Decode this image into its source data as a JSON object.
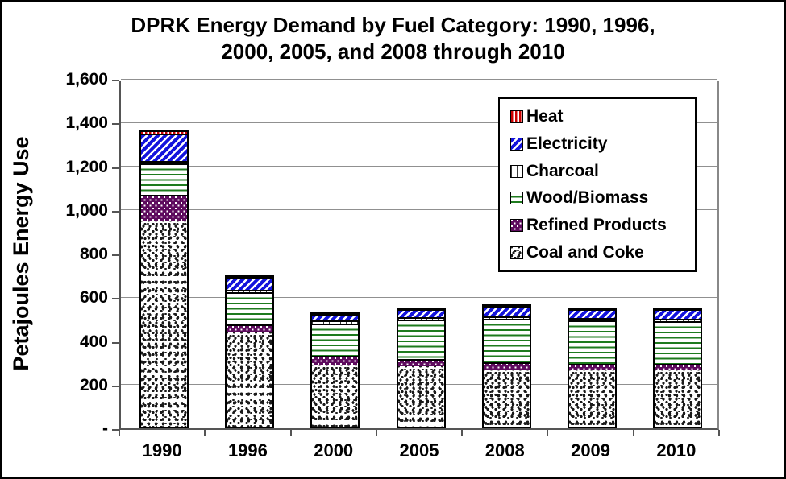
{
  "title": {
    "line1": "DPRK Energy Demand by Fuel Category: 1990, 1996,",
    "line2": "2000, 2005, and 2008 through 2010"
  },
  "axes": {
    "y_title": "Petajoules Energy Use",
    "y_ticks": [
      {
        "value": 0,
        "label": "-"
      },
      {
        "value": 200,
        "label": "200"
      },
      {
        "value": 400,
        "label": "400"
      },
      {
        "value": 600,
        "label": "600"
      },
      {
        "value": 800,
        "label": "800"
      },
      {
        "value": 1000,
        "label": "1,000"
      },
      {
        "value": 1200,
        "label": "1,200"
      },
      {
        "value": 1400,
        "label": "1,400"
      },
      {
        "value": 1600,
        "label": "1,600"
      }
    ]
  },
  "chart_data": {
    "type": "bar",
    "stacked": true,
    "title": "DPRK Energy Demand by Fuel Category: 1990, 1996, 2000, 2005, and 2008 through 2010",
    "ylabel": "Petajoules Energy Use",
    "xlabel": "",
    "ylim": [
      0,
      1600
    ],
    "ytick_interval": 200,
    "grid": true,
    "legend_position": "upper-right",
    "categories": [
      "1990",
      "1996",
      "2000",
      "2005",
      "2008",
      "2009",
      "2010"
    ],
    "series": [
      {
        "name": "Coal and Coke",
        "key": "coal",
        "color": "#1B1B1B",
        "pattern": "black-speckle-on-white",
        "values": [
          945,
          430,
          285,
          275,
          260,
          260,
          260
        ]
      },
      {
        "name": "Refined Products",
        "key": "refined",
        "color": "#5E0B5E",
        "pattern": "white-dots-on-purple",
        "values": [
          115,
          40,
          38,
          35,
          35,
          28,
          28
        ]
      },
      {
        "name": "Wood/Biomass",
        "key": "wood",
        "color": "#1E7B1E",
        "pattern": "green-horizontal-lines",
        "values": [
          145,
          145,
          150,
          180,
          200,
          200,
          195
        ]
      },
      {
        "name": "Charcoal",
        "key": "charcoal",
        "color": "#3A3A3A",
        "pattern": "black-vertical-lines",
        "values": [
          5,
          10,
          12,
          10,
          12,
          9,
          12
        ]
      },
      {
        "name": "Electricity",
        "key": "electricity",
        "color": "#1414DC",
        "pattern": "blue-diagonal-stripes",
        "values": [
          125,
          60,
          30,
          37,
          45,
          41,
          43
        ]
      },
      {
        "name": "Heat",
        "key": "heat",
        "color": "#CC0000",
        "pattern": "red-vertical-stripes",
        "values": [
          10,
          0,
          0,
          0,
          0,
          0,
          0
        ]
      }
    ],
    "totals": [
      1345,
      685,
      515,
      537,
      552,
      538,
      538
    ]
  },
  "colors": {
    "gridline": "#909090",
    "axis": "#555555",
    "text": "#000000",
    "background": "#FFFFFF"
  }
}
